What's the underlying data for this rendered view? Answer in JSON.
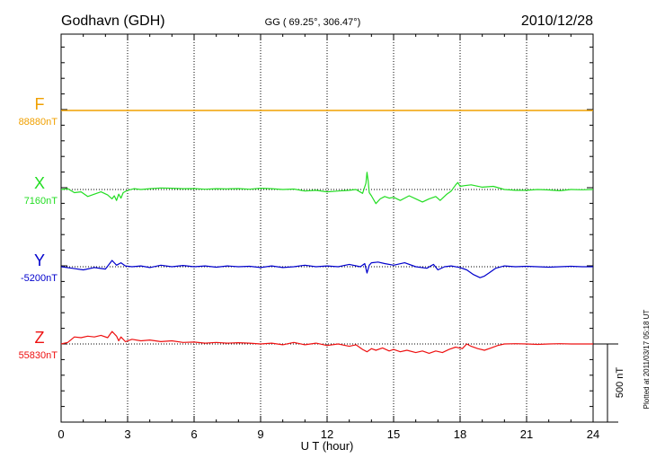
{
  "header": {
    "station": "Godhavn (GDH)",
    "coords": "GG ( 69.25°, 306.47°)",
    "date": "2010/12/28"
  },
  "footer": {
    "plotted": "Plotted at 2011/03/17 05:18 UT"
  },
  "scale_label": "500 nT",
  "chart_data": {
    "type": "line",
    "xlabel": "U T (hour)",
    "xlim": [
      0,
      24
    ],
    "xticks": [
      "0",
      "3",
      "6",
      "9",
      "12",
      "15",
      "18",
      "21",
      "24"
    ],
    "grid": true,
    "series": [
      {
        "name": "F",
        "baseline_label": "88880nT",
        "color": "#f0a000",
        "x": [
          0,
          24
        ],
        "y": [
          0,
          0
        ]
      },
      {
        "name": "X",
        "baseline_label": "7160nT",
        "color": "#22dd22",
        "x": [
          0,
          0.3,
          0.6,
          0.9,
          1.2,
          1.5,
          1.8,
          2.1,
          2.3,
          2.4,
          2.5,
          2.6,
          2.7,
          2.8,
          3.0,
          3.3,
          3.6,
          4.0,
          4.5,
          5.0,
          5.5,
          6.0,
          6.5,
          7.0,
          7.5,
          8.0,
          8.5,
          9.0,
          9.5,
          10.0,
          10.5,
          11.0,
          11.5,
          12.0,
          12.5,
          13.0,
          13.3,
          13.6,
          13.75,
          13.8,
          13.85,
          13.9,
          14.0,
          14.2,
          14.4,
          14.6,
          14.8,
          15.0,
          15.3,
          15.5,
          15.7,
          16.0,
          16.3,
          16.6,
          16.9,
          17.1,
          17.4,
          17.6,
          17.8,
          17.9,
          18.0,
          18.2,
          18.5,
          19.0,
          19.5,
          20.0,
          20.5,
          21.0,
          21.5,
          22.0,
          22.5,
          23.0,
          23.5,
          24.0
        ],
        "y": [
          0,
          5,
          -20,
          -15,
          -45,
          -30,
          -15,
          -35,
          -60,
          -40,
          -70,
          -30,
          -55,
          -20,
          -5,
          5,
          0,
          5,
          10,
          8,
          5,
          6,
          2,
          5,
          4,
          6,
          2,
          8,
          5,
          0,
          3,
          -10,
          -5,
          -15,
          -10,
          -5,
          0,
          -25,
          40,
          110,
          60,
          -20,
          -40,
          -90,
          -60,
          -45,
          -55,
          -50,
          -70,
          -55,
          -40,
          -60,
          -80,
          -60,
          -45,
          -70,
          -30,
          -10,
          30,
          45,
          20,
          25,
          30,
          15,
          20,
          0,
          -5,
          -5,
          0,
          -3,
          -8,
          0,
          -2,
          0
        ]
      },
      {
        "name": "Y",
        "baseline_label": "-5200nT",
        "color": "#0000cc",
        "x": [
          0,
          0.5,
          1.0,
          1.5,
          2.0,
          2.3,
          2.5,
          2.7,
          2.9,
          3.2,
          3.6,
          4.0,
          4.5,
          5.0,
          5.5,
          6.0,
          6.5,
          7.0,
          7.5,
          8.0,
          8.5,
          9.0,
          9.5,
          10.0,
          10.5,
          11.0,
          11.5,
          12.0,
          12.5,
          13.0,
          13.5,
          13.7,
          13.8,
          13.9,
          14.0,
          14.3,
          14.6,
          15.0,
          15.5,
          16.0,
          16.5,
          16.8,
          17.0,
          17.3,
          17.6,
          18.0,
          18.3,
          18.6,
          18.9,
          19.1,
          19.3,
          19.6,
          20.0,
          20.5,
          21.0,
          21.5,
          22.0,
          22.5,
          23.0,
          23.5,
          24.0
        ],
        "y": [
          0,
          -10,
          -20,
          -5,
          -15,
          40,
          10,
          25,
          5,
          0,
          5,
          -5,
          10,
          0,
          8,
          0,
          5,
          -3,
          5,
          0,
          3,
          -5,
          5,
          -5,
          0,
          10,
          0,
          5,
          0,
          15,
          0,
          20,
          -40,
          10,
          25,
          30,
          20,
          10,
          25,
          0,
          -10,
          15,
          -20,
          0,
          5,
          -5,
          -20,
          -50,
          -70,
          -60,
          -40,
          -10,
          5,
          0,
          3,
          0,
          -3,
          0,
          3,
          0,
          0
        ]
      },
      {
        "name": "Z",
        "baseline_label": "55830nT",
        "color": "#ee1111",
        "x": [
          0,
          0.3,
          0.6,
          0.9,
          1.2,
          1.5,
          1.8,
          2.1,
          2.3,
          2.5,
          2.6,
          2.7,
          2.9,
          3.2,
          3.6,
          4.0,
          4.5,
          5.0,
          5.5,
          6.0,
          6.5,
          7.0,
          7.5,
          8.0,
          8.5,
          9.0,
          9.5,
          10.0,
          10.5,
          11.0,
          11.5,
          12.0,
          12.5,
          13.0,
          13.3,
          13.6,
          13.8,
          14.0,
          14.2,
          14.5,
          14.8,
          15.0,
          15.3,
          15.6,
          16.0,
          16.3,
          16.6,
          16.9,
          17.2,
          17.5,
          17.8,
          18.1,
          18.3,
          18.5,
          18.8,
          19.1,
          19.4,
          19.7,
          20.0,
          20.5,
          21.0,
          21.5,
          22.0,
          22.5,
          23.0,
          23.5,
          24.0
        ],
        "y": [
          0,
          10,
          45,
          40,
          50,
          45,
          55,
          40,
          80,
          50,
          20,
          45,
          15,
          30,
          20,
          25,
          15,
          20,
          10,
          12,
          5,
          10,
          5,
          8,
          5,
          0,
          5,
          -5,
          10,
          -5,
          5,
          -10,
          0,
          -15,
          -5,
          -35,
          -50,
          -30,
          -40,
          -25,
          -45,
          -35,
          -50,
          -40,
          -55,
          -45,
          -60,
          -45,
          -55,
          -35,
          -20,
          -30,
          0,
          -15,
          -30,
          -40,
          -25,
          -10,
          0,
          2,
          0,
          -3,
          0,
          2,
          0,
          0,
          0
        ]
      }
    ]
  }
}
